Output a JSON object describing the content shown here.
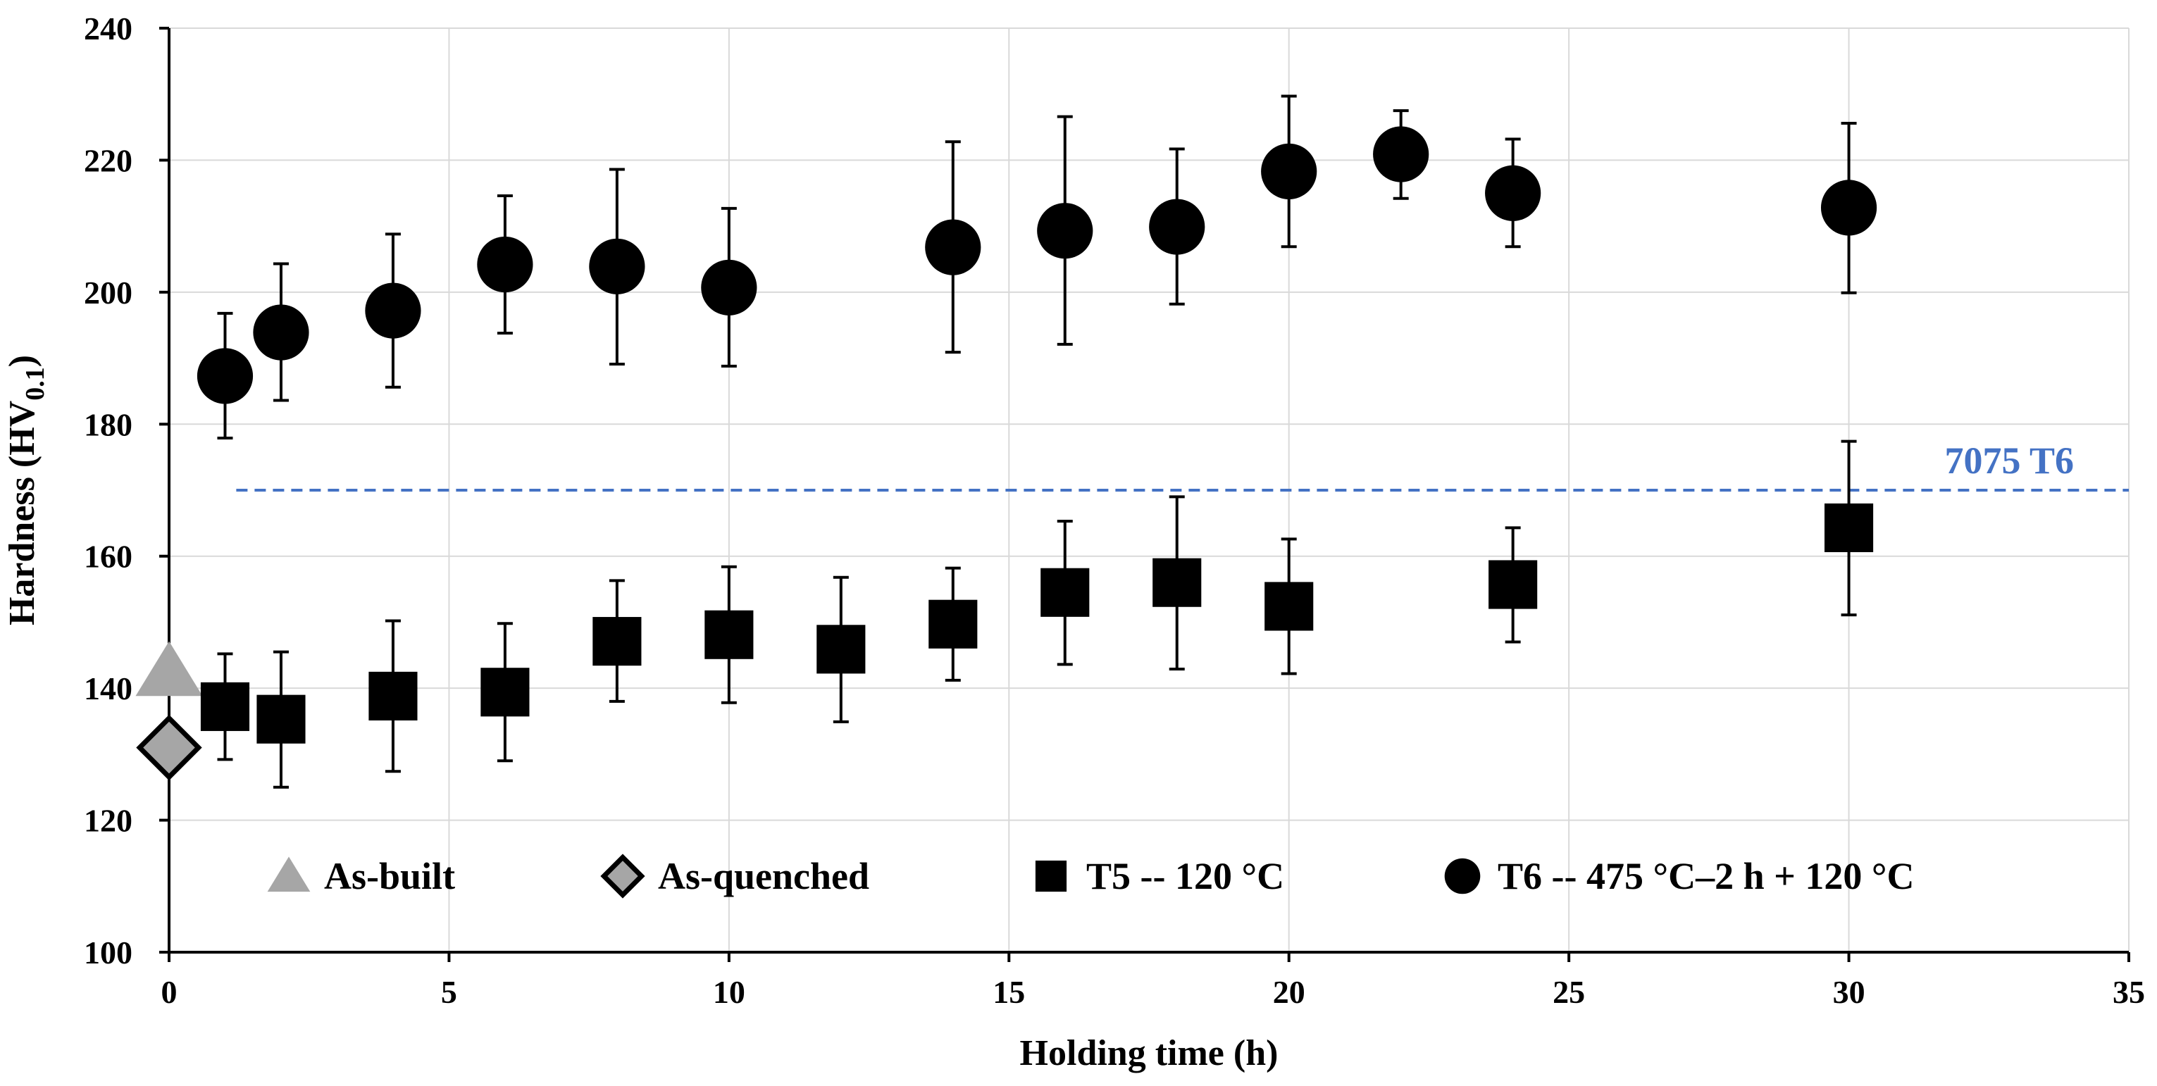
{
  "chart_data": {
    "type": "scatter",
    "xlabel": "Holding time (h)",
    "ylabel": "Hardness (HV0.1)",
    "ylabel_main": "Hardness (HV",
    "ylabel_sub": "0.1",
    "ylabel_close": ")",
    "xlim": [
      0,
      35
    ],
    "ylim": [
      100,
      240
    ],
    "xticks": [
      0,
      5,
      10,
      15,
      20,
      25,
      30,
      35
    ],
    "yticks": [
      100,
      120,
      140,
      160,
      180,
      200,
      220,
      240
    ],
    "grid": true,
    "legend_position": "bottom-inside",
    "reference_line": {
      "label": "7075 T6",
      "value": 170,
      "color": "#4472C4"
    },
    "series": [
      {
        "name": "As-built",
        "marker": "triangle",
        "color": "#A6A6A6",
        "points": [
          {
            "x": 0,
            "y": 142.5
          }
        ]
      },
      {
        "name": "As-quenched",
        "marker": "diamond",
        "color": "#A6A6A6",
        "points": [
          {
            "x": 0,
            "y": 131
          }
        ]
      },
      {
        "name": "T5 -- 120 °C",
        "marker": "square",
        "color": "#000000",
        "points": [
          {
            "x": 1,
            "y": 137.2,
            "low": 129.2,
            "high": 145.2
          },
          {
            "x": 2,
            "y": 135.3,
            "low": 125.0,
            "high": 145.5
          },
          {
            "x": 4,
            "y": 138.8,
            "low": 127.4,
            "high": 150.2
          },
          {
            "x": 6,
            "y": 139.4,
            "low": 129.0,
            "high": 149.8
          },
          {
            "x": 8,
            "y": 147.1,
            "low": 138.0,
            "high": 156.3
          },
          {
            "x": 10,
            "y": 148.1,
            "low": 137.8,
            "high": 158.4
          },
          {
            "x": 12,
            "y": 145.9,
            "low": 134.9,
            "high": 156.8
          },
          {
            "x": 14,
            "y": 149.7,
            "low": 141.2,
            "high": 158.2
          },
          {
            "x": 16,
            "y": 154.5,
            "low": 143.6,
            "high": 165.3
          },
          {
            "x": 18,
            "y": 156.0,
            "low": 142.9,
            "high": 169.0
          },
          {
            "x": 20,
            "y": 152.4,
            "low": 142.2,
            "high": 162.6
          },
          {
            "x": 24,
            "y": 155.7,
            "low": 147.0,
            "high": 164.3
          },
          {
            "x": 30,
            "y": 164.3,
            "low": 151.1,
            "high": 177.4
          }
        ]
      },
      {
        "name": "T6 -- 475 °C–2 h + 120 °C",
        "marker": "circle",
        "color": "#000000",
        "points": [
          {
            "x": 1,
            "y": 187.3,
            "low": 177.9,
            "high": 196.8
          },
          {
            "x": 2,
            "y": 193.9,
            "low": 183.6,
            "high": 204.3
          },
          {
            "x": 4,
            "y": 197.2,
            "low": 185.6,
            "high": 208.8
          },
          {
            "x": 6,
            "y": 204.2,
            "low": 193.8,
            "high": 214.6
          },
          {
            "x": 8,
            "y": 203.9,
            "low": 189.1,
            "high": 218.6
          },
          {
            "x": 10,
            "y": 200.7,
            "low": 188.8,
            "high": 212.7
          },
          {
            "x": 14,
            "y": 206.8,
            "low": 190.9,
            "high": 222.8
          },
          {
            "x": 16,
            "y": 209.3,
            "low": 192.1,
            "high": 226.6
          },
          {
            "x": 18,
            "y": 209.9,
            "low": 198.2,
            "high": 221.7
          },
          {
            "x": 20,
            "y": 218.3,
            "low": 206.9,
            "high": 229.7
          },
          {
            "x": 22,
            "y": 220.9,
            "low": 214.2,
            "high": 227.5
          },
          {
            "x": 24,
            "y": 215.0,
            "low": 206.9,
            "high": 223.2
          },
          {
            "x": 30,
            "y": 212.8,
            "low": 199.9,
            "high": 225.6
          }
        ]
      }
    ]
  }
}
